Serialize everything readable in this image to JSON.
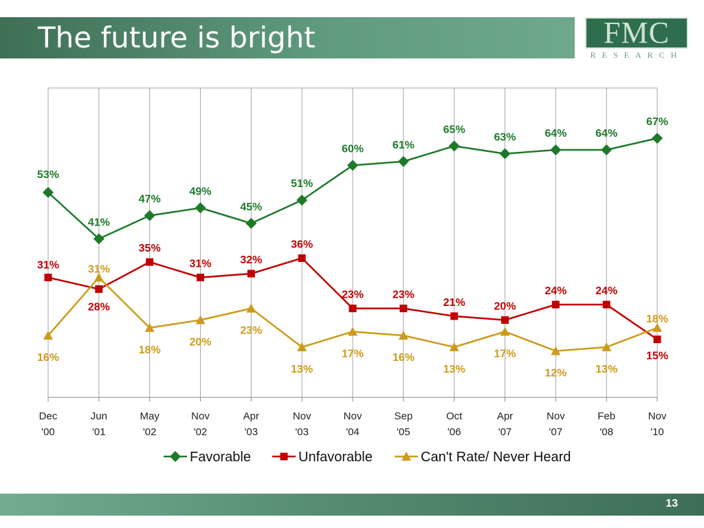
{
  "slide": {
    "title": "The future is bright",
    "page_number": "13"
  },
  "logo": {
    "mark": "FMC",
    "sub": "RESEARCH"
  },
  "colors": {
    "favorable": "#1e7a2a",
    "unfavorable": "#c00000",
    "cant_rate": "#cc9b1a",
    "title_bar": "#4d8468",
    "grid": "#a6a6a6"
  },
  "chart_data": {
    "type": "line",
    "title": "",
    "xlabel": "",
    "ylabel": "",
    "ylim": [
      0,
      80
    ],
    "grid": "vertical",
    "legend": "bottom",
    "categories": [
      [
        "Dec",
        "'00"
      ],
      [
        "Jun",
        "'01"
      ],
      [
        "May",
        "'02"
      ],
      [
        "Nov",
        "'02"
      ],
      [
        "Apr",
        "'03"
      ],
      [
        "Nov",
        "'03"
      ],
      [
        "Nov",
        "'04"
      ],
      [
        "Sep",
        "'05"
      ],
      [
        "Oct",
        "'06"
      ],
      [
        "Apr",
        "'07"
      ],
      [
        "Nov",
        "'07"
      ],
      [
        "Feb",
        "'08"
      ],
      [
        "Nov",
        "'10"
      ]
    ],
    "series": [
      {
        "name": "Favorable",
        "marker": "diamond",
        "values": [
          53,
          41,
          47,
          49,
          45,
          51,
          60,
          61,
          65,
          63,
          64,
          64,
          67
        ],
        "labels": [
          "53%",
          "41%",
          "47%",
          "49%",
          "45%",
          "51%",
          "60%",
          "61%",
          "65%",
          "63%",
          "64%",
          "64%",
          "67%"
        ]
      },
      {
        "name": "Unfavorable",
        "marker": "square",
        "values": [
          31,
          28,
          35,
          31,
          32,
          36,
          23,
          23,
          21,
          20,
          24,
          24,
          15
        ],
        "labels": [
          "31%",
          "28%",
          "35%",
          "31%",
          "32%",
          "36%",
          "23%",
          "23%",
          "21%",
          "20%",
          "24%",
          "24%",
          "15%"
        ]
      },
      {
        "name": "Can't Rate/ Never Heard",
        "marker": "triangle",
        "values": [
          16,
          31,
          18,
          20,
          23,
          13,
          17,
          16,
          13,
          17,
          12,
          13,
          18
        ],
        "labels": [
          "16%",
          "31%",
          "18%",
          "20%",
          "23%",
          "13%",
          "17%",
          "16%",
          "13%",
          "17%",
          "12%",
          "13%",
          "18%"
        ]
      }
    ]
  }
}
